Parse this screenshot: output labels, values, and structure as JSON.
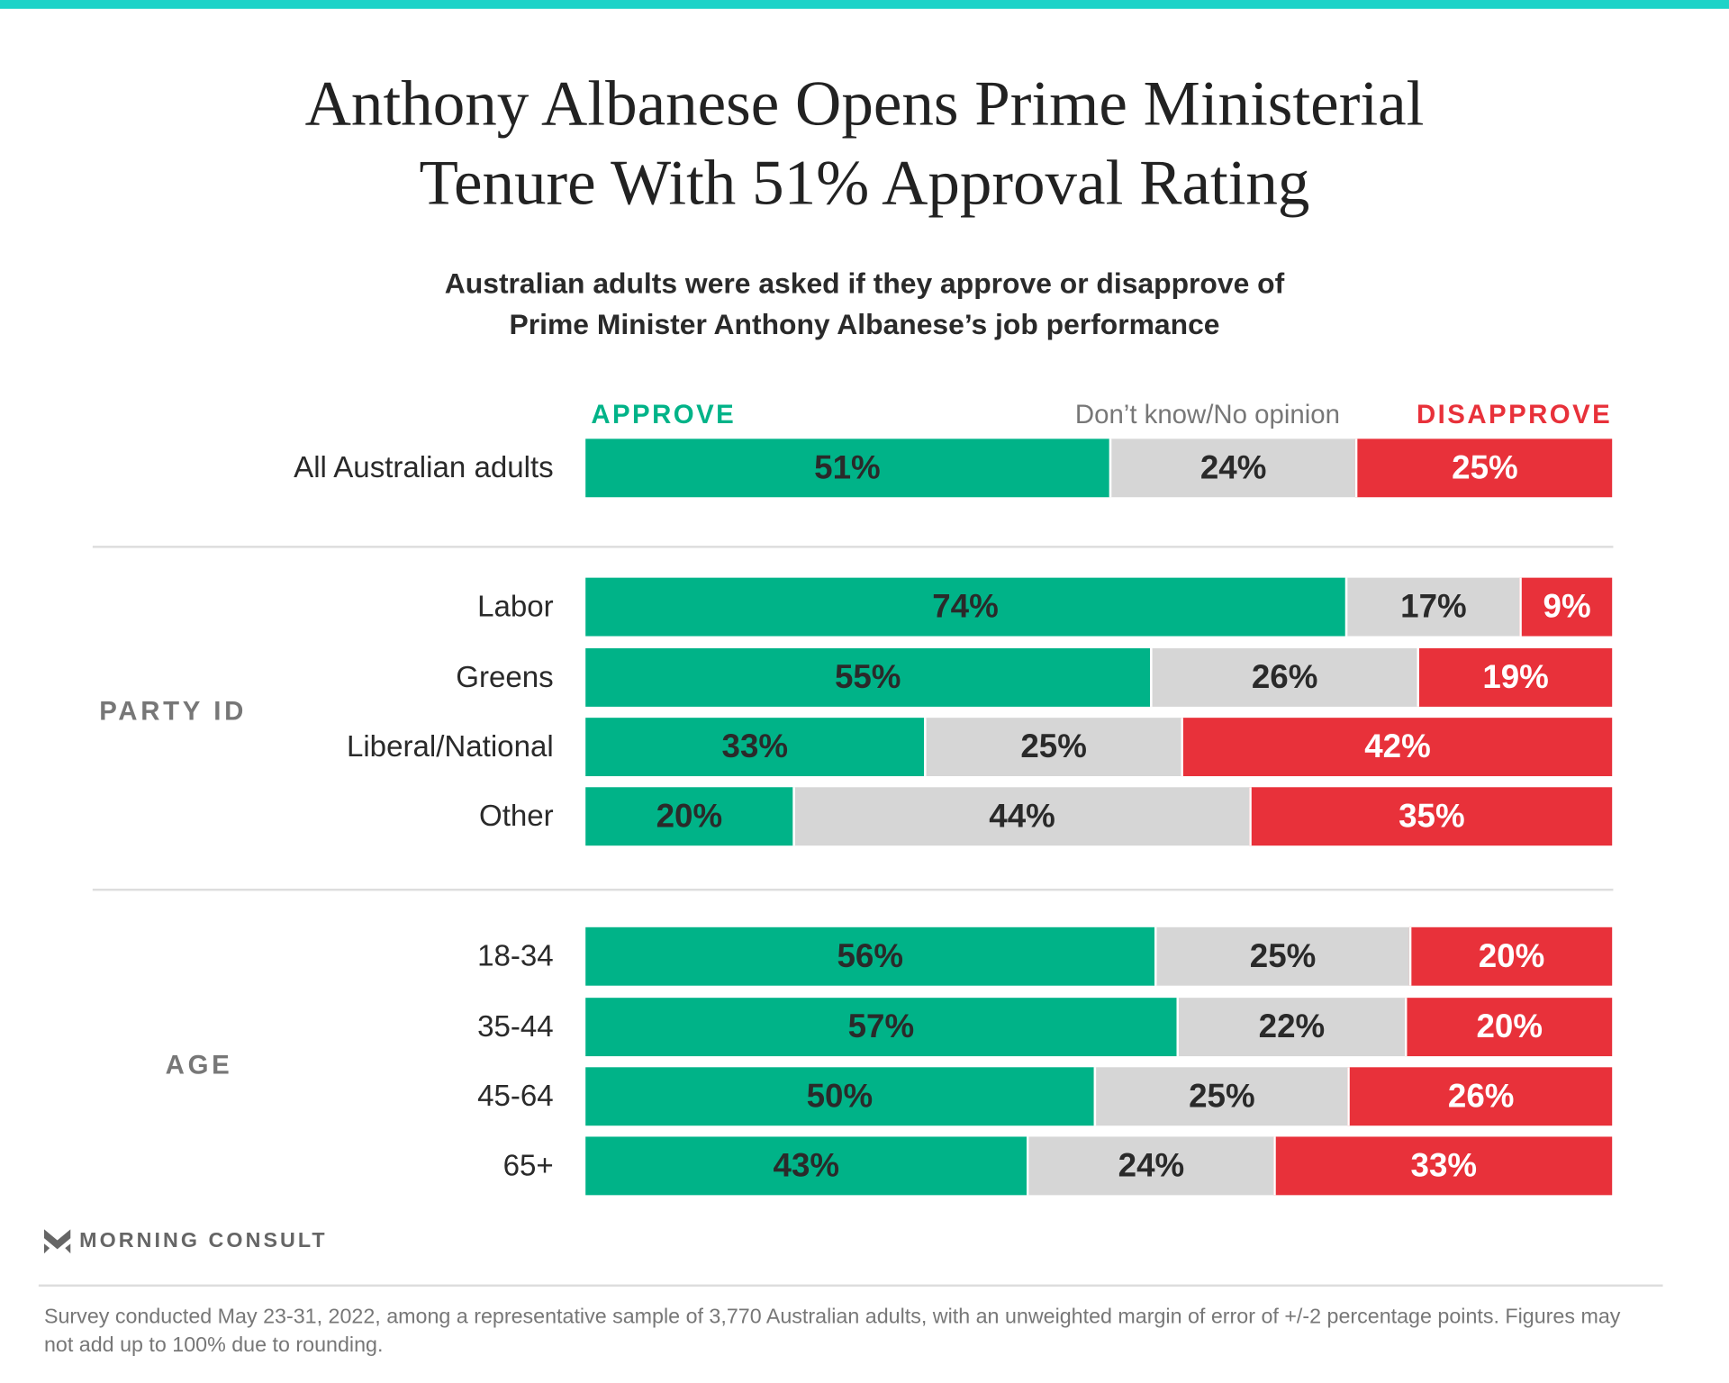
{
  "title_lines": [
    "Anthony Albanese Opens Prime Ministerial",
    "Tenure With 51% Approval Rating"
  ],
  "subtitle_lines": [
    "Australian adults were asked if they approve or disapprove of",
    "Prime Minister Anthony Albanese’s job performance"
  ],
  "colors": {
    "approve": "#00b388",
    "dont_know": "#d6d6d6",
    "disapprove": "#e8313a",
    "accent_top": "#1dd3c8"
  },
  "chart_data": {
    "type": "bar",
    "orientation": "horizontal-stacked-100",
    "series_labels": [
      "APPROVE",
      "Don’t know/No opinion",
      "DISAPPROVE"
    ],
    "groups": [
      {
        "label": "",
        "rows": [
          {
            "label": "All Australian adults",
            "values": [
              51,
              24,
              25
            ],
            "texts": [
              "51%",
              "24%",
              "25%"
            ]
          }
        ]
      },
      {
        "label": "PARTY ID",
        "rows": [
          {
            "label": "Labor",
            "values": [
              74,
              17,
              9
            ],
            "texts": [
              "74%",
              "17%",
              "9%"
            ]
          },
          {
            "label": "Greens",
            "values": [
              55,
              26,
              19
            ],
            "texts": [
              "55%",
              "26%",
              "19%"
            ]
          },
          {
            "label": "Liberal/National",
            "values": [
              33,
              25,
              42
            ],
            "texts": [
              "33%",
              "25%",
              "42%"
            ]
          },
          {
            "label": "Other",
            "values": [
              20,
              44,
              35
            ],
            "texts": [
              "20%",
              "44%",
              "35%"
            ]
          }
        ]
      },
      {
        "label": "AGE",
        "rows": [
          {
            "label": "18-34",
            "values": [
              56,
              25,
              20
            ],
            "texts": [
              "56%",
              "25%",
              "20%"
            ]
          },
          {
            "label": "35-44",
            "values": [
              57,
              22,
              20
            ],
            "texts": [
              "57%",
              "22%",
              "20%"
            ]
          },
          {
            "label": "45-64",
            "values": [
              50,
              25,
              26
            ],
            "texts": [
              "50%",
              "25%",
              "26%"
            ]
          },
          {
            "label": "65+",
            "values": [
              43,
              24,
              33
            ],
            "texts": [
              "43%",
              "24%",
              "33%"
            ]
          }
        ]
      }
    ]
  },
  "logo_text": "MORNING CONSULT",
  "footnote": "Survey conducted May 23-31, 2022, among a representative sample of 3,770 Australian adults, with an unweighted margin of error of +/-2 percentage points. Figures may not add up to 100% due to rounding."
}
